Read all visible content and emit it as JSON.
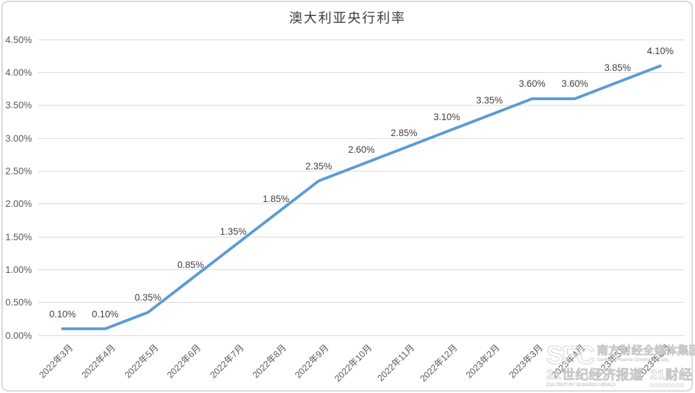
{
  "chart_data": {
    "type": "line",
    "title": "澳大利亚央行利率",
    "categories": [
      "2022年3月",
      "2022年4月",
      "2022年5月",
      "2022年6月",
      "2022年7月",
      "2022年8月",
      "2022年9月",
      "2022年10月",
      "2022年11月",
      "2022年12月",
      "2023年2月",
      "2023年3月",
      "2023年4月",
      "2023年5月",
      "2023年6月"
    ],
    "values": [
      0.1,
      0.1,
      0.35,
      0.85,
      1.35,
      1.85,
      2.35,
      2.6,
      2.85,
      3.1,
      3.35,
      3.6,
      3.6,
      3.85,
      4.1
    ],
    "point_labels": [
      "0.10%",
      "0.10%",
      "0.35%",
      "0.85%",
      "1.35%",
      "1.85%",
      "2.35%",
      "2.60%",
      "2.85%",
      "3.10%",
      "3.35%",
      "3.60%",
      "3.60%",
      "3.85%",
      "4.10%"
    ],
    "y_ticks": [
      "0.00%",
      "0.50%",
      "1.00%",
      "1.50%",
      "2.00%",
      "2.50%",
      "3.00%",
      "3.50%",
      "4.00%",
      "4.50%"
    ],
    "ylim": [
      0,
      4.5
    ],
    "xlabel": "",
    "ylabel": "",
    "grid": "horizontal",
    "legend": "none",
    "line_color": "#5B9BD5",
    "grid_color": "#D9D9D9",
    "axis_label_color": "#595959",
    "data_label_color": "#3F3F3F"
  },
  "watermark": {
    "logo": "SFC",
    "org_cn": "南方财经全媒体集团",
    "org_en": "Southern Finance Omnimedia Corp.",
    "brand1_cn": "21世纪经济报道",
    "brand1_en": "21st CENTURY BUSINESS HERALD",
    "brand2_cn": "21财经",
    "brand2_icons": "□□□□□□□□"
  }
}
